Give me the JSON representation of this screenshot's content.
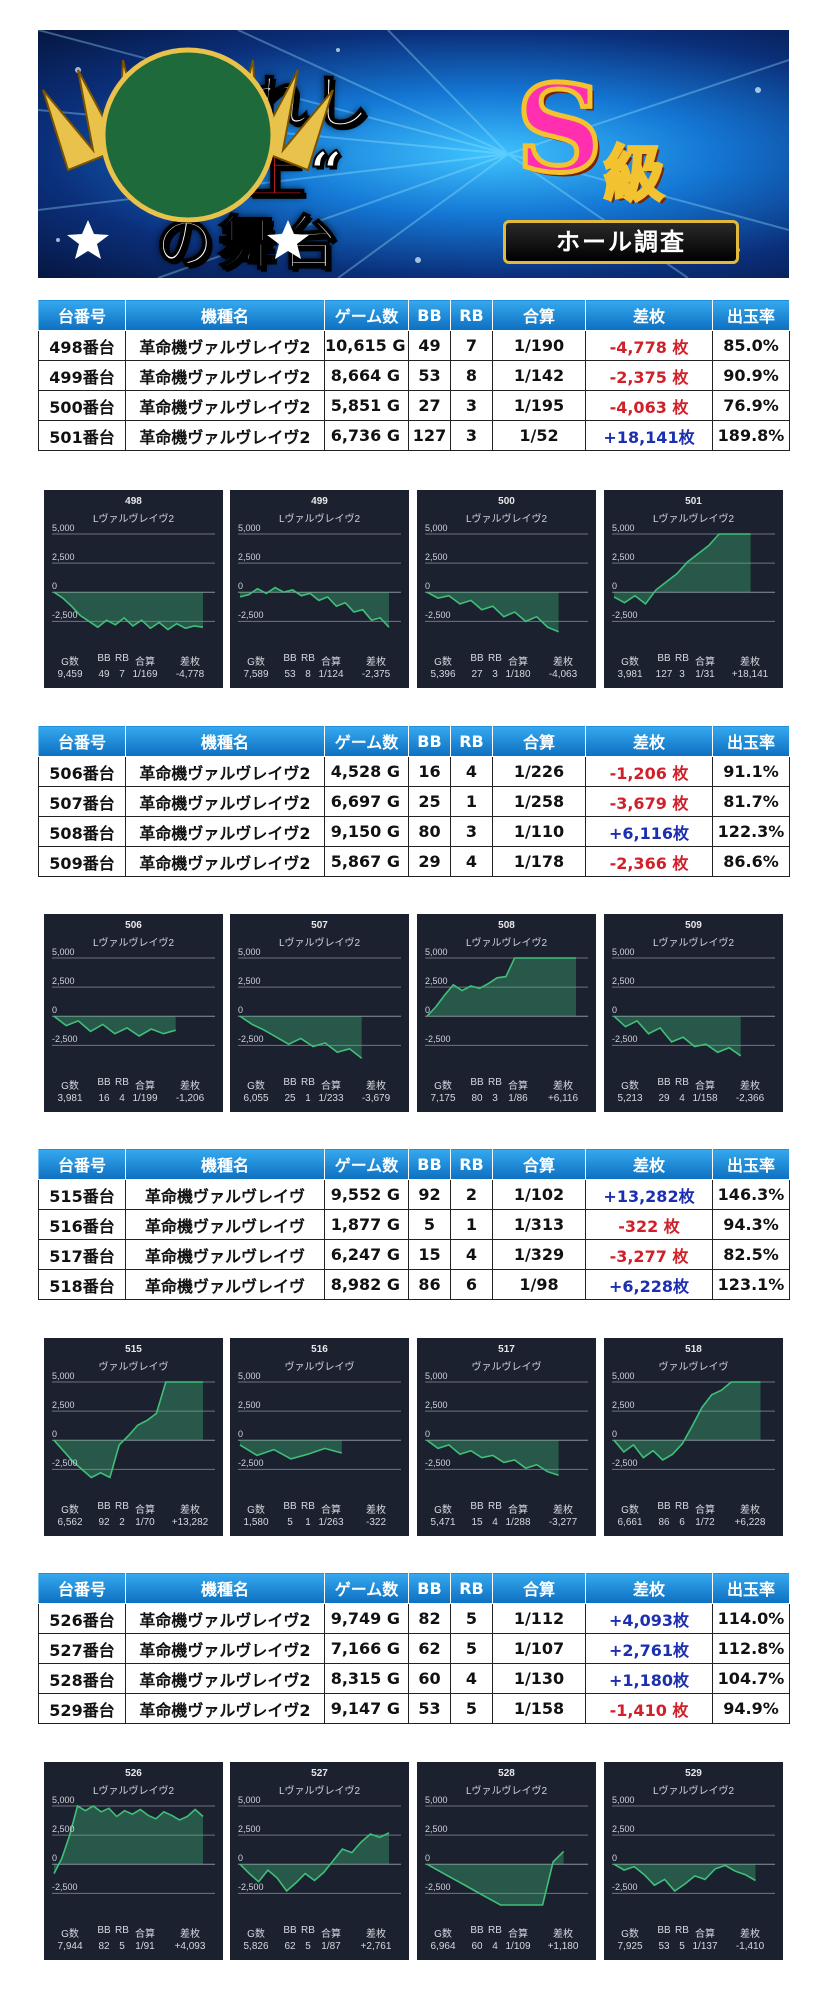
{
  "banner": {
    "line1": "選ばれし",
    "line2_open": "“",
    "line2_red": "極上",
    "line2_close": "“",
    "line3": "の舞台",
    "emblem_s": "S",
    "emblem_kyu": "級",
    "emblem_ribbon": "ホール調査"
  },
  "headers": [
    "台番号",
    "機種名",
    "ゲーム数",
    "BB",
    "RB",
    "合算",
    "差枚",
    "出玉率"
  ],
  "graph_headers": [
    "G数",
    "BB",
    "RB",
    "合算",
    "差枚"
  ],
  "y_labels": [
    "5,000",
    "2,500",
    "0",
    "-2,500"
  ],
  "groups": [
    {
      "rows": [
        {
          "no": "498番台",
          "model": "革命機ヴァルヴレイヴ2",
          "games": "10,615 G",
          "bb": "49",
          "rb": "7",
          "prob": "1/190",
          "diff": "-4,778 枚",
          "rate": "85.0%"
        },
        {
          "no": "499番台",
          "model": "革命機ヴァルヴレイヴ2",
          "games": "8,664 G",
          "bb": "53",
          "rb": "8",
          "prob": "1/142",
          "diff": "-2,375 枚",
          "rate": "90.9%"
        },
        {
          "no": "500番台",
          "model": "革命機ヴァルヴレイヴ2",
          "games": "5,851 G",
          "bb": "27",
          "rb": "3",
          "prob": "1/195",
          "diff": "-4,063 枚",
          "rate": "76.9%"
        },
        {
          "no": "501番台",
          "model": "革命機ヴァルヴレイヴ2",
          "games": "6,736 G",
          "bb": "127",
          "rb": "3",
          "prob": "1/52",
          "diff": "+18,141枚",
          "rate": "189.8%"
        }
      ],
      "graphs": [
        {
          "title": "498",
          "sub": "Lヴァルヴレイヴ2",
          "g": "9,459",
          "bb": "49",
          "rb": "7",
          "prob": "1/169",
          "diff": "-4,778",
          "points": [
            0,
            -500,
            -1200,
            -2000,
            -2500,
            -3000,
            -2400,
            -2800,
            -2200,
            -2900,
            -2400,
            -3100,
            -2600,
            -3200,
            -2700,
            -3100,
            -2900,
            -3000
          ]
        },
        {
          "title": "499",
          "sub": "Lヴァルヴレイヴ2",
          "g": "7,589",
          "bb": "53",
          "rb": "8",
          "prob": "1/124",
          "diff": "-2,375",
          "points": [
            -400,
            -200,
            300,
            -100,
            400,
            0,
            200,
            -300,
            -100,
            -700,
            -400,
            -1200,
            -900,
            -1700,
            -1500,
            -2400,
            -2200,
            -3000
          ]
        },
        {
          "title": "500",
          "sub": "Lヴァルヴレイヴ2",
          "g": "5,396",
          "bb": "27",
          "rb": "3",
          "prob": "1/180",
          "diff": "-4,063",
          "points": [
            0,
            -500,
            -300,
            -1000,
            -700,
            -1500,
            -1200,
            -2100,
            -1700,
            -2500,
            -2100,
            -3000,
            -3400
          ]
        },
        {
          "title": "501",
          "sub": "Lヴァルヴレイヴ2",
          "g": "3,981",
          "bb": "127",
          "rb": "3",
          "prob": "1/31",
          "diff": "+18,141",
          "points": [
            -400,
            -900,
            -300,
            -1000,
            200,
            900,
            1600,
            2600,
            3300,
            4000,
            5000,
            5000,
            5000,
            5000
          ]
        }
      ]
    },
    {
      "rows": [
        {
          "no": "506番台",
          "model": "革命機ヴァルヴレイヴ2",
          "games": "4,528 G",
          "bb": "16",
          "rb": "4",
          "prob": "1/226",
          "diff": "-1,206 枚",
          "rate": "91.1%"
        },
        {
          "no": "507番台",
          "model": "革命機ヴァルヴレイヴ2",
          "games": "6,697 G",
          "bb": "25",
          "rb": "1",
          "prob": "1/258",
          "diff": "-3,679 枚",
          "rate": "81.7%"
        },
        {
          "no": "508番台",
          "model": "革命機ヴァルヴレイヴ2",
          "games": "9,150 G",
          "bb": "80",
          "rb": "3",
          "prob": "1/110",
          "diff": "+6,116枚",
          "rate": "122.3%"
        },
        {
          "no": "509番台",
          "model": "革命機ヴァルヴレイヴ2",
          "games": "5,867 G",
          "bb": "29",
          "rb": "4",
          "prob": "1/178",
          "diff": "-2,366 枚",
          "rate": "86.6%"
        }
      ],
      "graphs": [
        {
          "title": "506",
          "sub": "Lヴァルヴレイヴ2",
          "g": "3,981",
          "bb": "16",
          "rb": "4",
          "prob": "1/199",
          "diff": "-1,206",
          "points": [
            0,
            -800,
            -400,
            -1300,
            -700,
            -1500,
            -1000,
            -1700,
            -1100,
            -1500,
            -1200
          ]
        },
        {
          "title": "507",
          "sub": "Lヴァルヴレイヴ2",
          "g": "6,055",
          "bb": "25",
          "rb": "1",
          "prob": "1/233",
          "diff": "-3,679",
          "points": [
            0,
            -700,
            -1200,
            -1800,
            -2400,
            -1900,
            -2600,
            -2300,
            -3100,
            -2800,
            -3600
          ]
        },
        {
          "title": "508",
          "sub": "Lヴァルヴレイヴ2",
          "g": "7,175",
          "bb": "80",
          "rb": "3",
          "prob": "1/86",
          "diff": "+6,116",
          "points": [
            0,
            800,
            1800,
            2700,
            2200,
            2600,
            2400,
            2800,
            3300,
            3400,
            5000,
            5000,
            5000,
            5000,
            5000,
            5000,
            5000,
            5000
          ]
        },
        {
          "title": "509",
          "sub": "Lヴァルヴレイヴ2",
          "g": "5,213",
          "bb": "29",
          "rb": "4",
          "prob": "1/158",
          "diff": "-2,366",
          "points": [
            0,
            -900,
            -400,
            -1500,
            -1000,
            -2200,
            -1800,
            -2600,
            -2400,
            -3100,
            -2700,
            -3400
          ]
        }
      ]
    },
    {
      "rows": [
        {
          "no": "515番台",
          "model": "革命機ヴァルヴレイヴ",
          "games": "9,552 G",
          "bb": "92",
          "rb": "2",
          "prob": "1/102",
          "diff": "+13,282枚",
          "rate": "146.3%"
        },
        {
          "no": "516番台",
          "model": "革命機ヴァルヴレイヴ",
          "games": "1,877 G",
          "bb": "5",
          "rb": "1",
          "prob": "1/313",
          "diff": "-322 枚",
          "rate": "94.3%"
        },
        {
          "no": "517番台",
          "model": "革命機ヴァルヴレイヴ",
          "games": "6,247 G",
          "bb": "15",
          "rb": "4",
          "prob": "1/329",
          "diff": "-3,277 枚",
          "rate": "82.5%"
        },
        {
          "no": "518番台",
          "model": "革命機ヴァルヴレイヴ",
          "games": "8,982 G",
          "bb": "86",
          "rb": "6",
          "prob": "1/98",
          "diff": "+6,228枚",
          "rate": "123.1%"
        }
      ],
      "graphs": [
        {
          "title": "515",
          "sub": "ヴァルヴレイヴ",
          "g": "6,562",
          "bb": "92",
          "rb": "2",
          "prob": "1/70",
          "diff": "+13,282",
          "points": [
            0,
            -900,
            -1800,
            -2500,
            -3200,
            -2800,
            -3200,
            -400,
            400,
            1300,
            1700,
            2300,
            5000,
            5000,
            5000,
            5000,
            5000
          ]
        },
        {
          "title": "516",
          "sub": "ヴァルヴレイヴ",
          "g": "1,580",
          "bb": "5",
          "rb": "1",
          "prob": "1/263",
          "diff": "-322",
          "points": [
            -400,
            -1300,
            -800,
            -1600,
            -1200,
            -700,
            -1100
          ]
        },
        {
          "title": "517",
          "sub": "ヴァルヴレイヴ",
          "g": "5,471",
          "bb": "15",
          "rb": "4",
          "prob": "1/288",
          "diff": "-3,277",
          "points": [
            0,
            -700,
            -400,
            -1200,
            -900,
            -1500,
            -1300,
            -1900,
            -1700,
            -2400,
            -2100,
            -2700,
            -3000
          ]
        },
        {
          "title": "518",
          "sub": "ヴァルヴレイヴ",
          "g": "6,661",
          "bb": "86",
          "rb": "6",
          "prob": "1/72",
          "diff": "+6,228",
          "points": [
            0,
            -1000,
            -400,
            -1500,
            -900,
            -1700,
            -1200,
            -300,
            1200,
            2800,
            3900,
            4300,
            5000,
            5000,
            5000,
            5000
          ]
        }
      ]
    },
    {
      "rows": [
        {
          "no": "526番台",
          "model": "革命機ヴァルヴレイヴ2",
          "games": "9,749 G",
          "bb": "82",
          "rb": "5",
          "prob": "1/112",
          "diff": "+4,093枚",
          "rate": "114.0%"
        },
        {
          "no": "527番台",
          "model": "革命機ヴァルヴレイヴ2",
          "games": "7,166 G",
          "bb": "62",
          "rb": "5",
          "prob": "1/107",
          "diff": "+2,761枚",
          "rate": "112.8%"
        },
        {
          "no": "528番台",
          "model": "革命機ヴァルヴレイヴ2",
          "games": "8,315 G",
          "bb": "60",
          "rb": "4",
          "prob": "1/130",
          "diff": "+1,180枚",
          "rate": "104.7%"
        },
        {
          "no": "529番台",
          "model": "革命機ヴァルヴレイヴ2",
          "games": "9,147 G",
          "bb": "53",
          "rb": "5",
          "prob": "1/158",
          "diff": "-1,410 枚",
          "rate": "94.9%"
        }
      ],
      "graphs": [
        {
          "title": "526",
          "sub": "Lヴァルヴレイヴ2",
          "g": "7,944",
          "bb": "82",
          "rb": "5",
          "prob": "1/91",
          "diff": "+4,093",
          "points": [
            -800,
            500,
            2500,
            5000,
            4600,
            5000,
            4500,
            4800,
            4100,
            4600,
            4300,
            4700,
            4200,
            3900,
            4500,
            4200,
            3800,
            4100,
            4700,
            4100
          ]
        },
        {
          "title": "527",
          "sub": "Lヴァルヴレイヴ2",
          "g": "5,826",
          "bb": "62",
          "rb": "5",
          "prob": "1/87",
          "diff": "+2,761",
          "points": [
            0,
            -800,
            -1500,
            -500,
            -1200,
            -2300,
            -1600,
            -800,
            -1400,
            -700,
            300,
            1300,
            1000,
            1900,
            2600,
            2300,
            2700
          ]
        },
        {
          "title": "528",
          "sub": "Lヴァルヴレイヴ2",
          "g": "6,964",
          "bb": "60",
          "rb": "4",
          "prob": "1/109",
          "diff": "+1,180",
          "points": [
            0,
            -500,
            -1000,
            -1500,
            -2000,
            -2500,
            -3000,
            -3500,
            -3500,
            -3500,
            -3500,
            -3500,
            200,
            1100
          ]
        },
        {
          "title": "529",
          "sub": "Lヴァルヴレイヴ2",
          "g": "7,925",
          "bb": "53",
          "rb": "5",
          "prob": "1/137",
          "diff": "-1,410",
          "points": [
            0,
            -500,
            -200,
            -900,
            -1800,
            -1300,
            -2300,
            -1700,
            -1000,
            -1300,
            -400,
            -100,
            -600,
            -900,
            -1400
          ]
        }
      ]
    }
  ],
  "colors": {
    "header_blue": "#0d6fc0",
    "positive": "#1b2fb0",
    "negative": "#d0202a",
    "graph_bg": "#1c2130",
    "graph_line": "#3fbf78"
  }
}
